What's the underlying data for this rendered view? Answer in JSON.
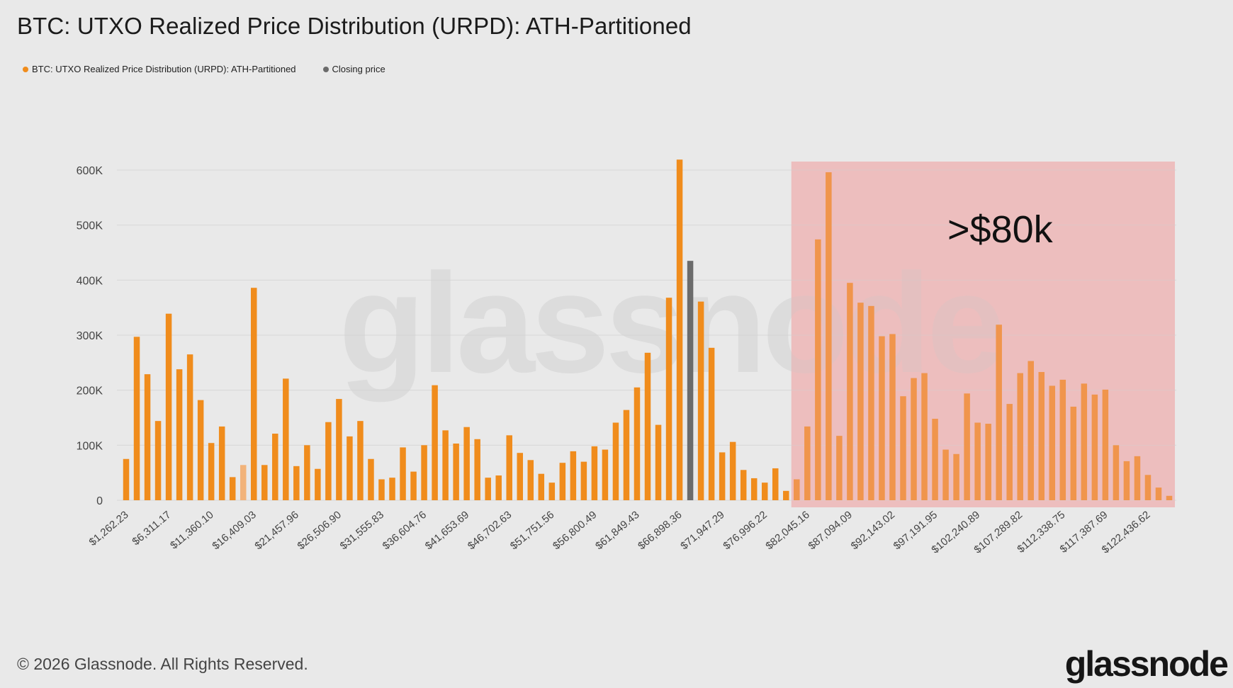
{
  "page": {
    "title": "BTC: UTXO Realized Price Distribution (URPD): ATH-Partitioned"
  },
  "legend": {
    "series_label": "BTC: UTXO Realized Price Distribution (URPD): ATH-Partitioned",
    "closing_label": "Closing price"
  },
  "colors": {
    "bar": "#f08c1c",
    "bar_light": "#f2b37a",
    "closing": "#6b6b6b",
    "highlight": "#f0a6a6",
    "grid": "#d7d7d7",
    "watermark": "#d2d2d2",
    "tick": "#444444"
  },
  "annotation": {
    "text": ">$80k"
  },
  "watermark": {
    "text": "glassnode"
  },
  "footer": {
    "copyright": "© 2026 Glassnode. All Rights Reserved."
  },
  "brand": {
    "text": "glassnode"
  },
  "chart_data": {
    "type": "bar",
    "title": "BTC: UTXO Realized Price Distribution (URPD): ATH-Partitioned",
    "xlabel": "",
    "ylabel": "",
    "ylim": [
      0,
      600000
    ],
    "yticks": [
      0,
      100000,
      200000,
      300000,
      400000,
      500000,
      600000
    ],
    "ytick_labels": [
      "0",
      "100K",
      "200K",
      "300K",
      "400K",
      "500K",
      "600K"
    ],
    "xtick_labels": [
      "$1,262.23",
      "$6,311.17",
      "$11,360.10",
      "$16,409.03",
      "$21,457.96",
      "$26,506.90",
      "$31,555.83",
      "$36,604.76",
      "$41,653.69",
      "$46,702.63",
      "$51,751.56",
      "$56,800.49",
      "$61,849.43",
      "$66,898.36",
      "$71,947.29",
      "$76,996.22",
      "$82,045.16",
      "$87,094.09",
      "$92,143.02",
      "$97,191.95",
      "$102,240.89",
      "$107,289.82",
      "$112,338.75",
      "$117,387.69",
      "$122,436.62"
    ],
    "tick_every": 4,
    "highlight_from_index": 63,
    "closing_index": 53,
    "light_index": 11,
    "highlight_label": ">$80k",
    "series": [
      {
        "name": "BTC: UTXO Realized Price Distribution (URPD): ATH-Partitioned",
        "values": [
          75000,
          297000,
          229000,
          144000,
          339000,
          238000,
          265000,
          182000,
          104000,
          134000,
          42000,
          64000,
          386000,
          64000,
          121000,
          221000,
          62000,
          100000,
          57000,
          142000,
          184000,
          116000,
          144000,
          75000,
          38000,
          41000,
          96000,
          52000,
          100000,
          209000,
          127000,
          103000,
          133000,
          111000,
          41000,
          45000,
          118000,
          86000,
          73000,
          48000,
          32000,
          68000,
          89000,
          70000,
          98000,
          92000,
          141000,
          164000,
          205000,
          268000,
          137000,
          368000,
          619000,
          435000,
          361000,
          277000,
          87000,
          106000,
          55000,
          40000,
          32000,
          58000,
          17000,
          38000,
          134000,
          474000,
          596000,
          117000,
          395000,
          359000,
          353000,
          298000,
          302000,
          189000,
          222000,
          231000,
          148000,
          92000,
          84000,
          194000,
          141000,
          139000,
          319000,
          175000,
          231000,
          253000,
          233000,
          208000,
          219000,
          170000,
          212000,
          192000,
          201000,
          100000,
          71000,
          80000,
          46000,
          23000,
          8000
        ]
      },
      {
        "name": "Closing price",
        "index": 53,
        "value": 435000
      }
    ]
  }
}
